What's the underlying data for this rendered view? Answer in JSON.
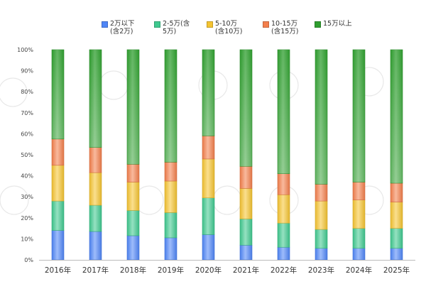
{
  "chart_data": {
    "type": "bar",
    "stacked": true,
    "percent": true,
    "title": "",
    "xlabel": "",
    "ylabel": "",
    "ylim": [
      0,
      100
    ],
    "yticks": [
      "0%",
      "10%",
      "20%",
      "30%",
      "40%",
      "50%",
      "60%",
      "70%",
      "80%",
      "90%",
      "100%"
    ],
    "grid": false,
    "legend_position": "top",
    "categories": [
      "2016年",
      "2017年",
      "2018年",
      "2019年",
      "2020年",
      "2021年",
      "2022年",
      "2023年",
      "2024年",
      "2025年"
    ],
    "series": [
      {
        "name": "2万以下\n(含2万)",
        "color": "#4f86f7",
        "values": [
          14,
          13.5,
          11.5,
          10.5,
          12,
          7,
          6,
          5.5,
          5.5,
          5.5
        ]
      },
      {
        "name": "2-5万(含\n5万)",
        "color": "#3fc98f",
        "values": [
          14,
          12.5,
          12,
          12,
          17.5,
          12.5,
          11.5,
          9,
          9.5,
          9.5
        ]
      },
      {
        "name": "5-10万\n(含10万)",
        "color": "#f5c431",
        "values": [
          17,
          15.5,
          13.5,
          15,
          18.5,
          14.5,
          13.5,
          13.5,
          13.5,
          12.5
        ]
      },
      {
        "name": "10-15万\n(含15万)",
        "color": "#f47f4c",
        "values": [
          12.5,
          12,
          8.5,
          9,
          11,
          10.5,
          10,
          8,
          8.5,
          9
        ]
      },
      {
        "name": "15万以上",
        "color": "#2f9e2f",
        "values": [
          42.5,
          46.5,
          54.5,
          53.5,
          41,
          55.5,
          59,
          64,
          63,
          63.5
        ]
      }
    ]
  }
}
